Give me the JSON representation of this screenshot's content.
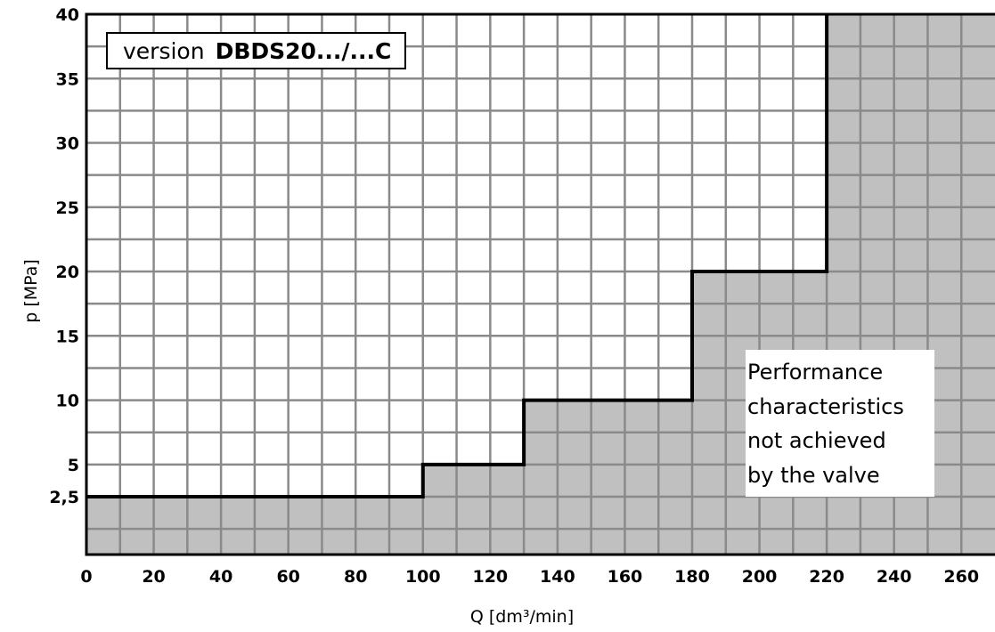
{
  "chart_data": {
    "type": "area",
    "xlabel": "Q [dm³/min]",
    "ylabel": "p [MPa]",
    "xlim": [
      0,
      270
    ],
    "ylim": [
      -2,
      40
    ],
    "x_ticks": [
      "0",
      "20",
      "40",
      "60",
      "80",
      "100",
      "120",
      "140",
      "160",
      "180",
      "200",
      "220",
      "240",
      "260"
    ],
    "x_tick_values": [
      0,
      20,
      40,
      60,
      80,
      100,
      120,
      140,
      160,
      180,
      200,
      220,
      240,
      260
    ],
    "y_ticks": [
      "2,5",
      "5",
      "10",
      "15",
      "20",
      "25",
      "30",
      "35",
      "40"
    ],
    "y_tick_values": [
      2.5,
      5,
      10,
      15,
      20,
      25,
      30,
      35,
      40
    ],
    "grid": true,
    "grid_x_step": 10,
    "grid_y_step": 2.5,
    "boundary": {
      "x": [
        0,
        100,
        100,
        130,
        130,
        180,
        180,
        220,
        220
      ],
      "y": [
        2.5,
        2.5,
        5,
        5,
        10,
        10,
        20,
        20,
        40
      ]
    },
    "version_box": {
      "prefix": "version",
      "model": "DBDS20.../...C"
    },
    "region_note": [
      "Performance",
      "characteristics",
      "not achieved",
      "by the valve"
    ]
  },
  "colors": {
    "shaded_region": "#c0c0c0",
    "grid": "#8a8a8a",
    "boundary_line": "#000000",
    "background": "#ffffff"
  }
}
